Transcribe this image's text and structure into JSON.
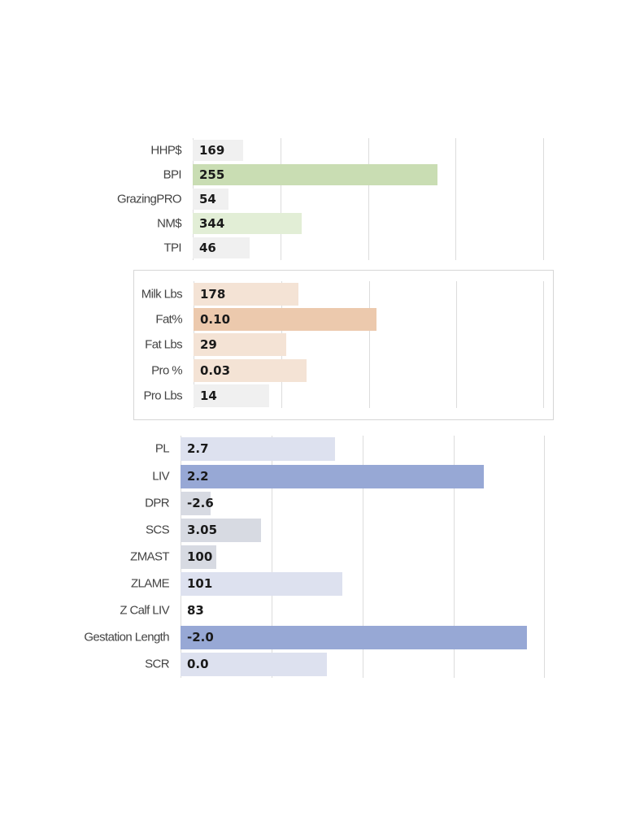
{
  "chart_data": [
    {
      "type": "bar",
      "orientation": "horizontal",
      "categories": [
        "HHP$",
        "BPI",
        "GrazingPRO",
        "NM$",
        "TPI"
      ],
      "values": [
        169,
        255,
        54,
        344,
        46
      ],
      "value_labels": [
        "169",
        "255",
        "54",
        "344",
        "46"
      ],
      "bar_colors": [
        "#f0f0f0",
        "#c9ddb3",
        "#f0f0f0",
        "#e2eed6",
        "#f0f0f0"
      ],
      "grid": true
    },
    {
      "type": "bar",
      "orientation": "horizontal",
      "categories": [
        "Milk Lbs",
        "Fat%",
        "Fat Lbs",
        "Pro %",
        "Pro Lbs"
      ],
      "values": [
        178,
        0.1,
        29,
        0.03,
        14
      ],
      "value_labels": [
        "178",
        "0.10",
        "29",
        "0.03",
        "14"
      ],
      "bar_colors": [
        "#f4e3d5",
        "#ecc9ad",
        "#f4e3d5",
        "#f4e3d5",
        "#f0f0f0"
      ],
      "grid": true
    },
    {
      "type": "bar",
      "orientation": "horizontal",
      "categories": [
        "PL",
        "LIV",
        "DPR",
        "SCS",
        "ZMAST",
        "ZLAME",
        "Z Calf LIV",
        "Gestation Length",
        "SCR"
      ],
      "values": [
        2.7,
        2.2,
        -2.6,
        3.05,
        100,
        101,
        83,
        -2.0,
        0.0
      ],
      "value_labels": [
        "2.7",
        "2.2",
        "-2.6",
        "3.05",
        "100",
        "101",
        "83",
        "-2.0",
        "0.0"
      ],
      "bar_colors": [
        "#dde1ef",
        "#97a8d5",
        "#d7dae2",
        "#d7dae2",
        "#d7dae2",
        "#dde1ef",
        "#ffffff",
        "#97a8d5",
        "#dde1ef"
      ],
      "grid": true
    }
  ]
}
